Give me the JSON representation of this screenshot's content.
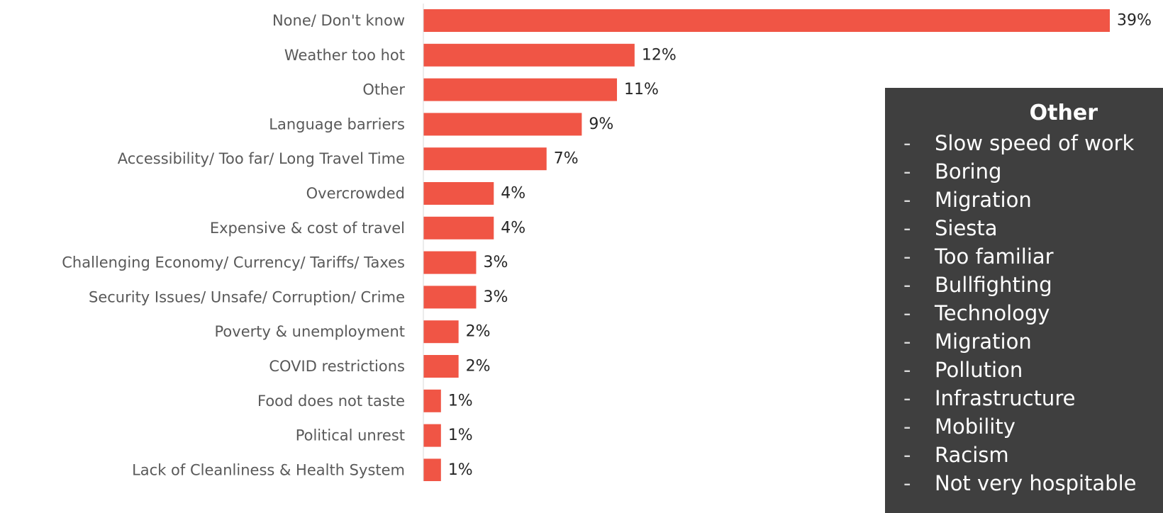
{
  "chart_data": {
    "type": "bar",
    "orientation": "horizontal",
    "categories": [
      "None/ Don't know",
      "Weather too hot",
      "Other",
      "Language barriers",
      "Accessibility/ Too far/ Long Travel Time",
      "Overcrowded",
      "Expensive & cost of travel",
      "Challenging Economy/ Currency/ Tariffs/ Taxes",
      "Security Issues/ Unsafe/ Corruption/ Crime",
      "Poverty & unemployment",
      "COVID restrictions",
      "Food does not taste",
      "Political unrest",
      "Lack of Cleanliness & Health System"
    ],
    "values": [
      39,
      12,
      11,
      9,
      7,
      4,
      4,
      3,
      3,
      2,
      2,
      1,
      1,
      1
    ],
    "value_labels": [
      "39%",
      "12%",
      "11%",
      "9%",
      "7%",
      "4%",
      "4%",
      "3%",
      "3%",
      "2%",
      "2%",
      "1%",
      "1%",
      "1%"
    ],
    "xlim": [
      0,
      39
    ],
    "grid": false,
    "bar_color": "#f05545"
  },
  "callout": {
    "title": "Other",
    "bullet": "-",
    "items": [
      "Slow speed of work",
      "Boring",
      "Migration",
      "Siesta",
      "Too familiar",
      "Bullfighting",
      "Technology",
      "Migration",
      "Pollution",
      "Infrastructure",
      "Mobility",
      "Racism",
      "Not very hospitable"
    ],
    "background": "#3f3f3f"
  }
}
